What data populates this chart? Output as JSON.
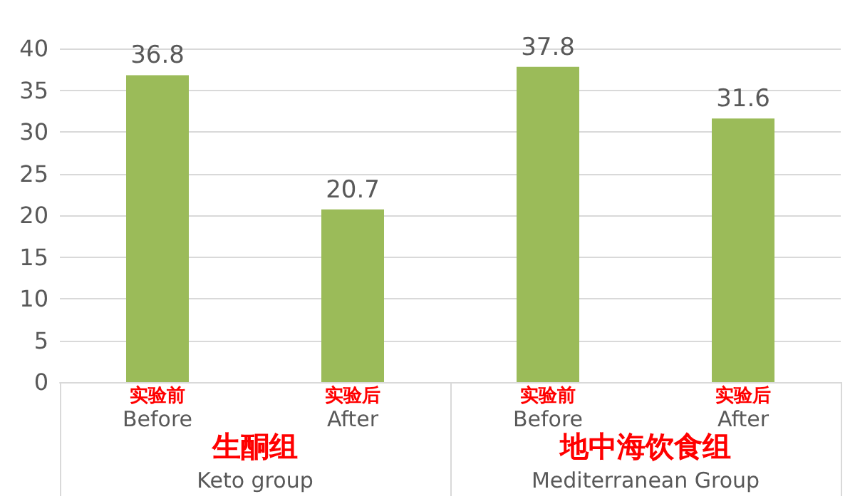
{
  "chart_data": {
    "type": "bar",
    "categories": [
      "实验前\nBefore",
      "实验后\nAfter",
      "实验前\nBefore",
      "实验后\nAfter"
    ],
    "values": [
      36.8,
      20.7,
      37.8,
      31.6
    ],
    "color": "#9bbb59",
    "ylim": [
      0,
      40
    ],
    "yticks": [
      0,
      5,
      10,
      15,
      20,
      25,
      30,
      35,
      40
    ],
    "grid": "y",
    "data_labels": true,
    "annotations": [
      "生酮组\nKeto group",
      "地中海饮食组\nMediterranean Group"
    ]
  }
}
